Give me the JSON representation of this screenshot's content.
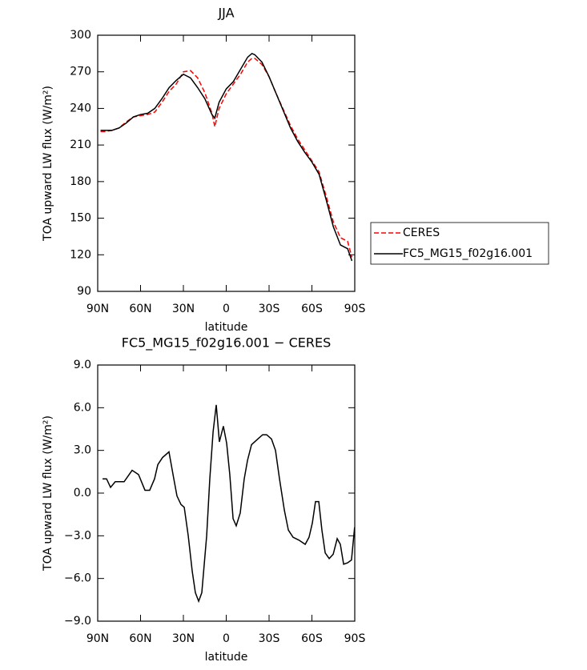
{
  "chart_data": [
    {
      "type": "line",
      "title": "JJA",
      "x_label": "latitude",
      "y_label": "TOA upward LW flux (W/m²)",
      "x": [
        88,
        85,
        80,
        75,
        70,
        65,
        60,
        55,
        50,
        45,
        40,
        35,
        30,
        25,
        20,
        15,
        10,
        8,
        5,
        0,
        -5,
        -10,
        -15,
        -18,
        -20,
        -25,
        -30,
        -35,
        -40,
        -45,
        -50,
        -55,
        -60,
        -65,
        -70,
        -75,
        -80,
        -85,
        -88
      ],
      "series": [
        {
          "name": "CERES",
          "color": "#ff0000",
          "linestyle": "dashed",
          "values": [
            221,
            221,
            222,
            224,
            229,
            233,
            234,
            235,
            237,
            245,
            254,
            260,
            270,
            271,
            265,
            253,
            236,
            225,
            240,
            252,
            260,
            268,
            278,
            281,
            281,
            276,
            266,
            252,
            239,
            226,
            215,
            206,
            197,
            188,
            168,
            147,
            134,
            131,
            118
          ]
        },
        {
          "name": "FC5_MG15_f02g16.001",
          "color": "#000000",
          "linestyle": "solid",
          "values": [
            222,
            222,
            222,
            224,
            228,
            233,
            235,
            236,
            240,
            248,
            257,
            263,
            268,
            265,
            257,
            248,
            235,
            232,
            245,
            256,
            262,
            272,
            282,
            285,
            284,
            278,
            266,
            252,
            238,
            224,
            213,
            204,
            196,
            186,
            165,
            143,
            128,
            125,
            115
          ]
        }
      ],
      "xlim": [
        90,
        -90
      ],
      "xticks": [
        {
          "value": 90,
          "label": "90N"
        },
        {
          "value": 60,
          "label": "60N"
        },
        {
          "value": 30,
          "label": "30N"
        },
        0,
        {
          "value": -30,
          "label": "30S"
        },
        {
          "value": -60,
          "label": "60S"
        },
        {
          "value": -90,
          "label": "90S"
        }
      ],
      "ylim": [
        90,
        300
      ],
      "yticks": [
        90,
        120,
        150,
        180,
        210,
        240,
        270,
        300
      ],
      "legend": "right"
    },
    {
      "type": "line",
      "title": "FC5_MG15_f02g16.001 − CERES",
      "x_label": "latitude",
      "y_label": "TOA upward LW flux (W/m²)",
      "x": [
        86.6,
        83.8,
        81.0,
        77.7,
        71.5,
        65.9,
        61.4,
        56.9,
        53.6,
        50.2,
        47.9,
        44.6,
        42.3,
        40.1,
        36.7,
        34.5,
        31.7,
        29.4,
        26.6,
        23.8,
        21.6,
        19.3,
        17.1,
        13.7,
        11.5,
        9.2,
        7.0,
        4.8,
        2.0,
        -0.3,
        -2.5,
        -4.8,
        -7.0,
        -9.8,
        -12.6,
        -14.9,
        -17.7,
        -22.1,
        -25.5,
        -28.3,
        -31.7,
        -34.5,
        -37.3,
        -40.7,
        -43.5,
        -46.8,
        -50.8,
        -55.3,
        -58.0,
        -60.3,
        -62.5,
        -64.8,
        -67.0,
        -69.3,
        -72.1,
        -74.9,
        -77.7,
        -79.9,
        -82.2,
        -85.0,
        -87.7,
        -89.9
      ],
      "values": [
        1.0,
        1.0,
        0.4,
        0.8,
        0.8,
        1.6,
        1.3,
        0.2,
        0.2,
        1.0,
        2.0,
        2.5,
        2.7,
        2.9,
        1.0,
        -0.2,
        -0.8,
        -1.0,
        -3.0,
        -5.5,
        -7.0,
        -7.6,
        -7.0,
        -3.0,
        1.0,
        4.3,
        6.2,
        3.6,
        4.7,
        3.5,
        1.3,
        -1.8,
        -2.3,
        -1.4,
        1.0,
        2.3,
        3.4,
        3.8,
        4.1,
        4.1,
        3.8,
        3.0,
        1.0,
        -1.2,
        -2.6,
        -3.1,
        -3.3,
        -3.6,
        -3.1,
        -2.1,
        -0.6,
        -0.6,
        -2.6,
        -4.2,
        -4.6,
        -4.3,
        -3.2,
        -3.6,
        -5.0,
        -4.9,
        -4.7,
        -2.4
      ],
      "color": "#000000",
      "xlim": [
        90,
        -90
      ],
      "xticks": [
        {
          "value": 90,
          "label": "90N"
        },
        {
          "value": 60,
          "label": "60N"
        },
        {
          "value": 30,
          "label": "30N"
        },
        0,
        {
          "value": -30,
          "label": "30S"
        },
        {
          "value": -60,
          "label": "60S"
        },
        {
          "value": -90,
          "label": "90S"
        }
      ],
      "ylim": [
        -9,
        9
      ],
      "yticks": [
        {
          "value": -9,
          "label": "−9.0"
        },
        {
          "value": -6,
          "label": "−6.0"
        },
        {
          "value": -3,
          "label": "−3.0"
        },
        {
          "value": 0,
          "label": "0.0"
        },
        {
          "value": 3,
          "label": "3.0"
        },
        {
          "value": 6,
          "label": "6.0"
        },
        {
          "value": 9,
          "label": "9.0"
        }
      ]
    }
  ]
}
